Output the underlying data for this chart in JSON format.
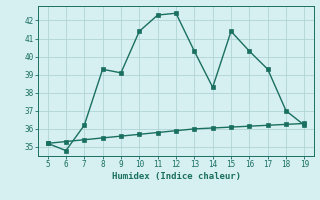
{
  "x": [
    5,
    6,
    7,
    8,
    9,
    10,
    11,
    12,
    13,
    14,
    15,
    16,
    17,
    18,
    19
  ],
  "y_humidex": [
    35.2,
    34.8,
    36.2,
    39.3,
    39.1,
    41.4,
    42.3,
    42.4,
    40.3,
    38.3,
    41.4,
    40.3,
    39.3,
    37.0,
    36.2
  ],
  "y_baseline": [
    35.2,
    35.3,
    35.4,
    35.5,
    35.6,
    35.7,
    35.8,
    35.9,
    36.0,
    36.05,
    36.1,
    36.15,
    36.2,
    36.25,
    36.3
  ],
  "xlabel": "Humidex (Indice chaleur)",
  "xlim": [
    4.5,
    19.5
  ],
  "ylim": [
    34.5,
    42.8
  ],
  "xticks": [
    5,
    6,
    7,
    8,
    9,
    10,
    11,
    12,
    13,
    14,
    15,
    16,
    17,
    18,
    19
  ],
  "yticks": [
    35,
    36,
    37,
    38,
    39,
    40,
    41,
    42
  ],
  "line_color": "#1a7060",
  "bg_color": "#d6eff0",
  "grid_color": "#b0d4d4",
  "marker": "s",
  "marker_size": 2.5,
  "line_width": 1.0
}
